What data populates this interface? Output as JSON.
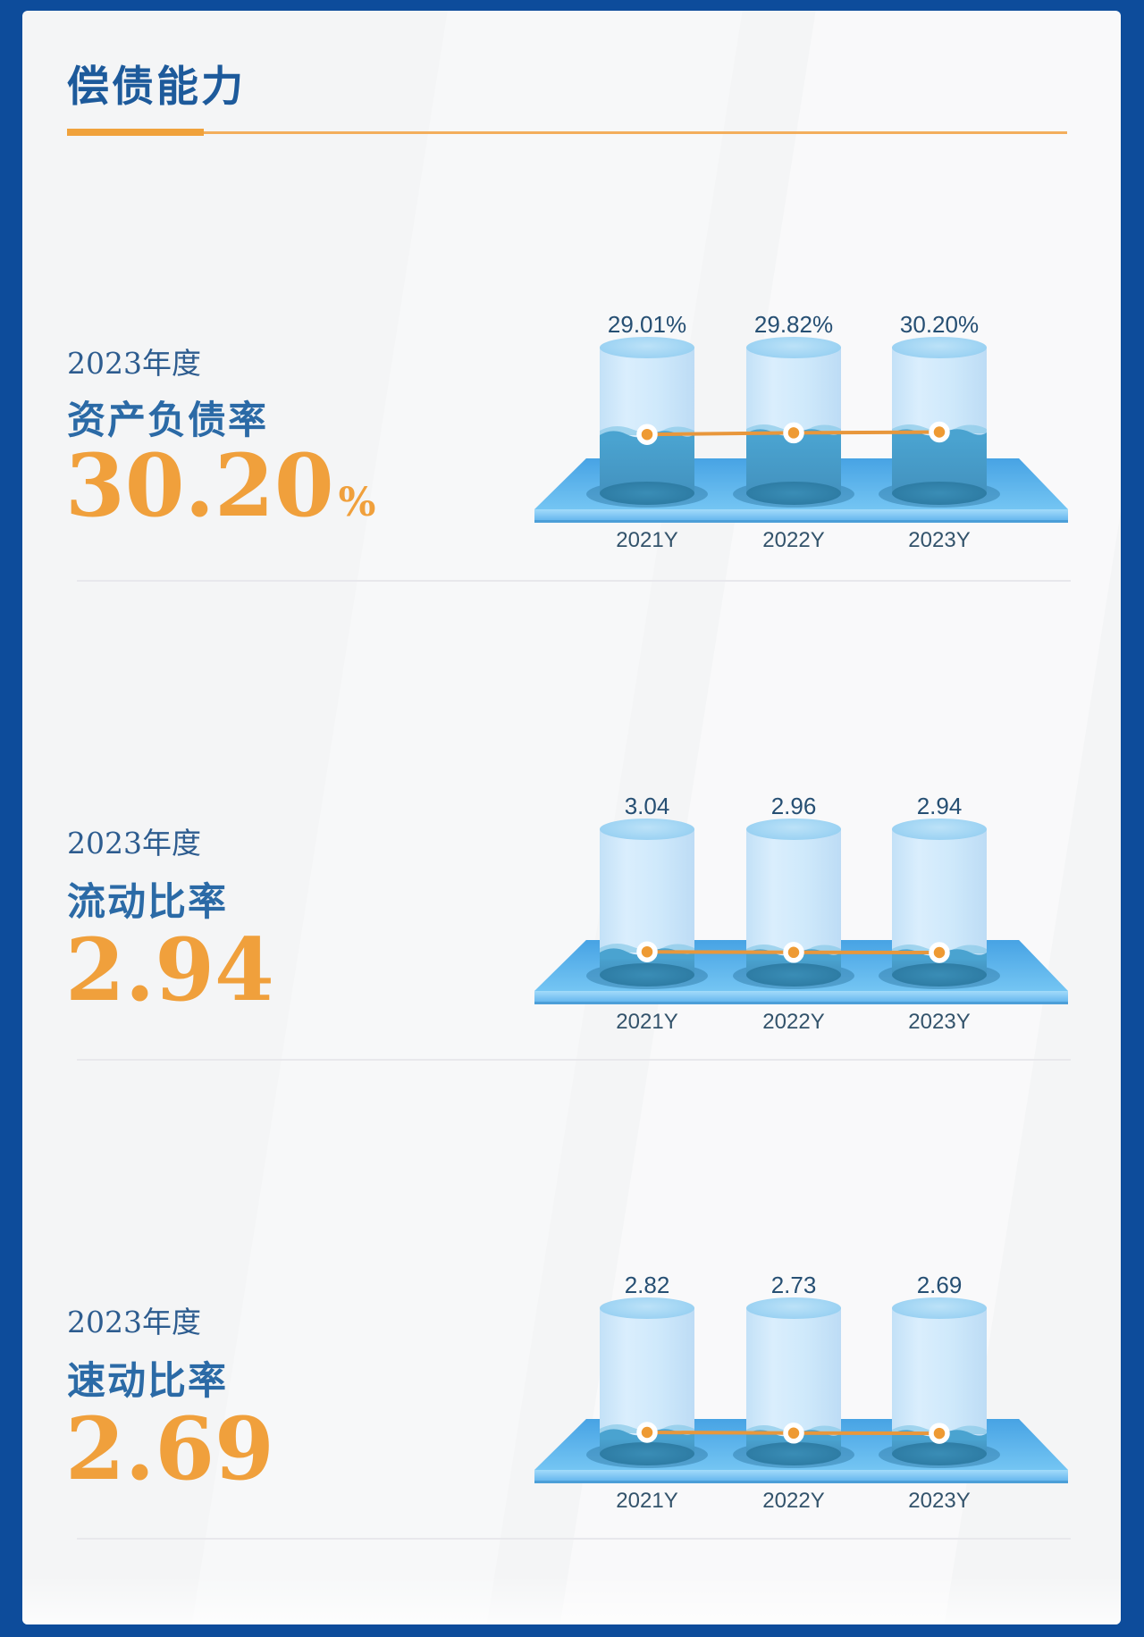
{
  "page": {
    "title": "偿债能力",
    "colors": {
      "frame_blue": "#0d4c9b",
      "card_bg": "#f4f5f6",
      "title_blue": "#1d5a9b",
      "accent_orange": "#f0a03c",
      "underline_orange_thick": "#f0a23c",
      "underline_orange_thin": "#f3ae5c",
      "metric_blue": "#2b6aa6",
      "period_blue": "#2d5c8f",
      "value_label_navy": "#264f73",
      "year_label_slate": "#33536b",
      "divider_gray": "#e8e8ec",
      "dot_orange": "#ee9a33",
      "line_orange": "#e8973c",
      "water_blue": "#4aa3d0"
    }
  },
  "sections": [
    {
      "period": "2023年度",
      "metric": "资产负债率",
      "value": "30.20",
      "unit": "%",
      "chart": {
        "categories": [
          "2021Y",
          "2022Y",
          "2023Y"
        ],
        "values": [
          29.01,
          29.82,
          30.2
        ],
        "labels": [
          "29.01%",
          "29.82%",
          "30.20%"
        ],
        "scale_max": 75
      }
    },
    {
      "period": "2023年度",
      "metric": "流动比率",
      "value": "2.94",
      "unit": "",
      "chart": {
        "categories": [
          "2021Y",
          "2022Y",
          "2023Y"
        ],
        "values": [
          3.04,
          2.96,
          2.94
        ],
        "labels": [
          "3.04",
          "2.96",
          "2.94"
        ],
        "scale_max": 20
      }
    },
    {
      "period": "2023年度",
      "metric": "速动比率",
      "value": "2.69",
      "unit": "",
      "chart": {
        "categories": [
          "2021Y",
          "2022Y",
          "2023Y"
        ],
        "values": [
          2.82,
          2.73,
          2.69
        ],
        "labels": [
          "2.82",
          "2.73",
          "2.69"
        ],
        "scale_max": 20
      }
    }
  ],
  "chart_data": [
    {
      "type": "bar",
      "title": "资产负债率",
      "categories": [
        "2021Y",
        "2022Y",
        "2023Y"
      ],
      "values": [
        29.01,
        29.82,
        30.2
      ],
      "value_labels": [
        "29.01%",
        "29.82%",
        "30.20%"
      ],
      "unit": "%",
      "xlabel": "",
      "ylabel": "",
      "ylim": [
        0,
        75
      ],
      "grid": false,
      "legend": false,
      "style": "3d-cylinder with orange level line and dots"
    },
    {
      "type": "bar",
      "title": "流动比率",
      "categories": [
        "2021Y",
        "2022Y",
        "2023Y"
      ],
      "values": [
        3.04,
        2.96,
        2.94
      ],
      "value_labels": [
        "3.04",
        "2.96",
        "2.94"
      ],
      "unit": "",
      "xlabel": "",
      "ylabel": "",
      "ylim": [
        0,
        20
      ],
      "grid": false,
      "legend": false,
      "style": "3d-cylinder with orange level line and dots"
    },
    {
      "type": "bar",
      "title": "速动比率",
      "categories": [
        "2021Y",
        "2022Y",
        "2023Y"
      ],
      "values": [
        2.82,
        2.73,
        2.69
      ],
      "value_labels": [
        "2.82",
        "2.73",
        "2.69"
      ],
      "unit": "",
      "xlabel": "",
      "ylabel": "",
      "ylim": [
        0,
        20
      ],
      "grid": false,
      "legend": false,
      "style": "3d-cylinder with orange level line and dots"
    }
  ]
}
